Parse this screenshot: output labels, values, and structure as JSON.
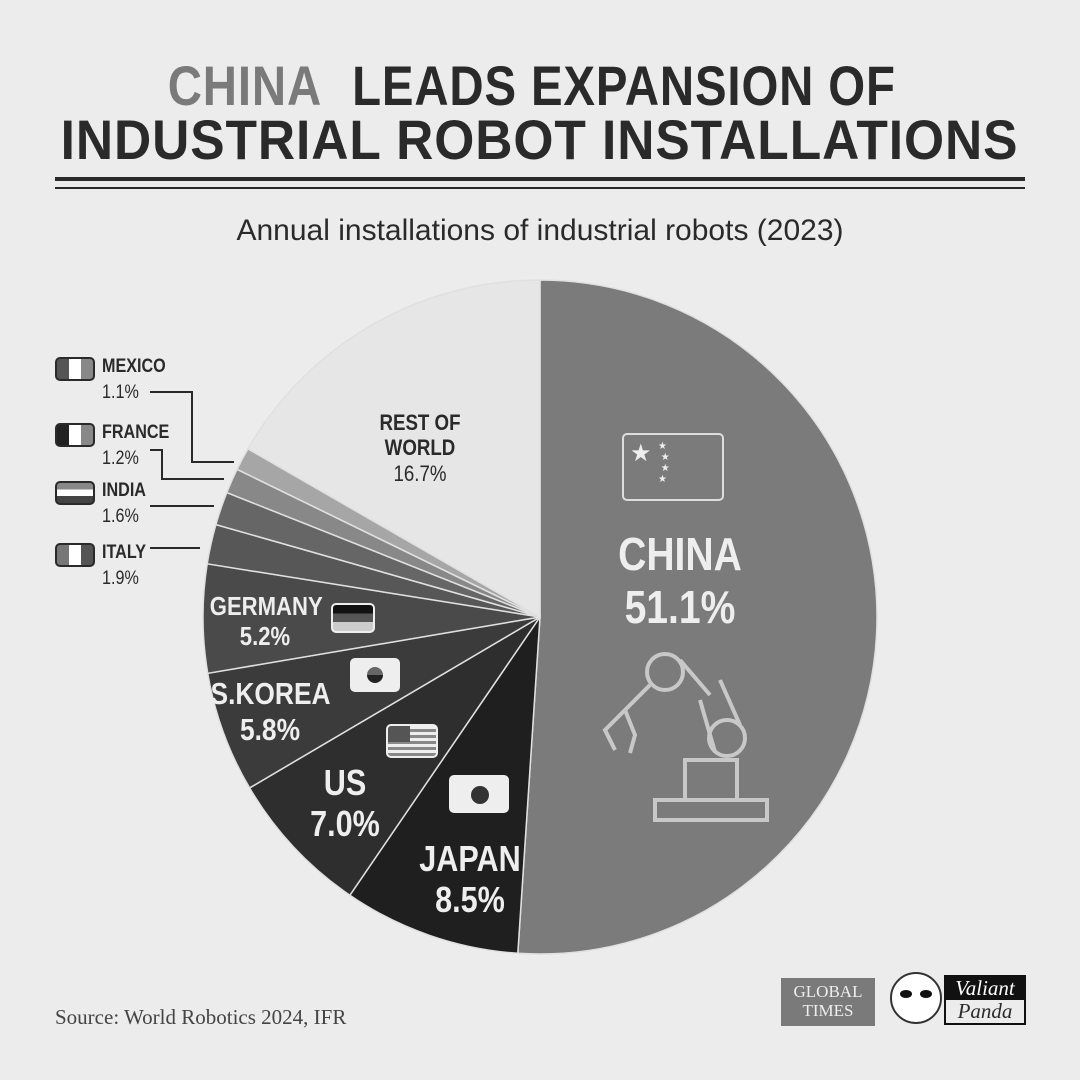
{
  "header": {
    "title_highlight": "CHINA",
    "title_line1_rest": " LEADS EXPANSION OF",
    "title_line2": "INDUSTRIAL ROBOT INSTALLATIONS"
  },
  "chart_data": {
    "type": "pie",
    "title": "Annual installations of industrial robots (2023)",
    "start": "top, clockwise",
    "slices": [
      {
        "label": "CHINA",
        "value": 51.1,
        "display": "51.1%",
        "color": "#7b7b7b"
      },
      {
        "label": "JAPAN",
        "value": 8.5,
        "display": "8.5%",
        "color": "#1f1f1f"
      },
      {
        "label": "US",
        "value": 7.0,
        "display": "7.0%",
        "color": "#2e2e2e"
      },
      {
        "label": "S.KOREA",
        "value": 5.8,
        "display": "5.8%",
        "color": "#3b3b3b"
      },
      {
        "label": "GERMANY",
        "value": 5.2,
        "display": "5.2%",
        "color": "#4a4a4a"
      },
      {
        "label": "ITALY",
        "value": 1.9,
        "display": "1.9%",
        "color": "#575757"
      },
      {
        "label": "INDIA",
        "value": 1.6,
        "display": "1.6%",
        "color": "#666666"
      },
      {
        "label": "FRANCE",
        "value": 1.2,
        "display": "1.2%",
        "color": "#888888"
      },
      {
        "label": "MEXICO",
        "value": 1.1,
        "display": "1.1%",
        "color": "#a6a6a6"
      },
      {
        "label": "REST OF WORLD",
        "value": 16.7,
        "display": "16.7%",
        "color": "#e6e6e6"
      }
    ]
  },
  "footer": {
    "source": "Source: World Robotics 2024, IFR",
    "logo1_line1": "GLOBAL",
    "logo1_line2": "TIMES",
    "logo2_line1": "Valiant",
    "logo2_line2": "Panda"
  }
}
